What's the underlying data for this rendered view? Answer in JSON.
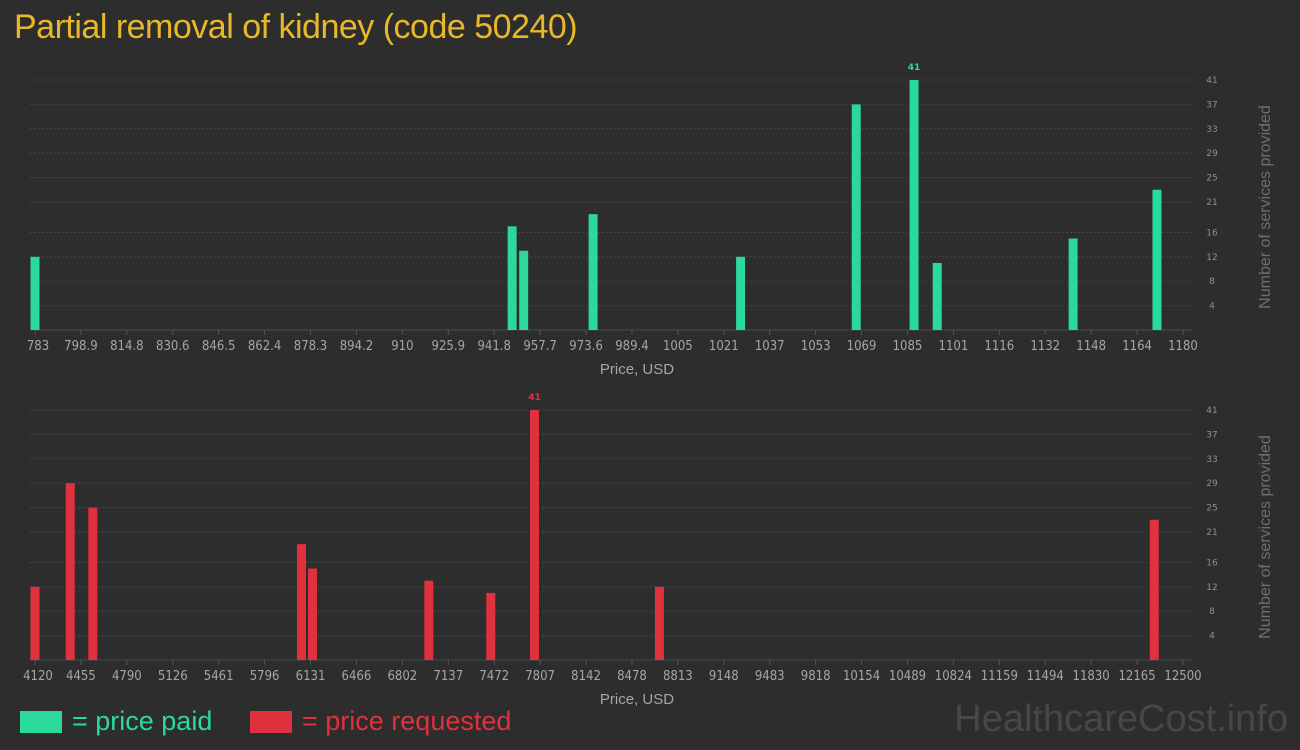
{
  "title": "Partial removal of kidney (code 50240)",
  "colors": {
    "paid": "#2bd99b",
    "requested": "#e0313f",
    "title": "#e8b82a"
  },
  "legend": {
    "paid": "= price paid",
    "requested": "= price requested"
  },
  "watermark": "HealthcareCost.info",
  "chart_data": [
    {
      "type": "bar",
      "series_key": "paid",
      "xlabel": "Price, USD",
      "ylabel": "Number of services provided",
      "xlim": [
        783,
        1180
      ],
      "ylim": [
        0,
        41
      ],
      "yticks": [
        4,
        8,
        12,
        16,
        21,
        25,
        29,
        33,
        37,
        41
      ],
      "xticks": [
        "783",
        "798.9",
        "814.8",
        "830.6",
        "846.5",
        "862.4",
        "878.3",
        "894.2",
        "910",
        "925.9",
        "941.8",
        "957.7",
        "973.6",
        "989.4",
        "1005",
        "1021",
        "1037",
        "1053",
        "1069",
        "1085",
        "1101",
        "1116",
        "1132",
        "1148",
        "1164",
        "1180"
      ],
      "bars": [
        {
          "x": 783,
          "value": 12
        },
        {
          "x": 948,
          "value": 17
        },
        {
          "x": 952,
          "value": 13
        },
        {
          "x": 976,
          "value": 19
        },
        {
          "x": 1027,
          "value": 12
        },
        {
          "x": 1067,
          "value": 37
        },
        {
          "x": 1087,
          "value": 41,
          "label": "41"
        },
        {
          "x": 1095,
          "value": 11
        },
        {
          "x": 1142,
          "value": 15
        },
        {
          "x": 1171,
          "value": 23
        }
      ]
    },
    {
      "type": "bar",
      "series_key": "requested",
      "xlabel": "Price, USD",
      "ylabel": "Number of services provided",
      "xlim": [
        4120,
        12500
      ],
      "ylim": [
        0,
        41
      ],
      "yticks": [
        4,
        8,
        12,
        16,
        21,
        25,
        29,
        33,
        37,
        41
      ],
      "xticks": [
        "4120",
        "4455",
        "4790",
        "5126",
        "5461",
        "5796",
        "6131",
        "6466",
        "6802",
        "7137",
        "7472",
        "7807",
        "8142",
        "8478",
        "8813",
        "9148",
        "9483",
        "9818",
        "10154",
        "10489",
        "10824",
        "11159",
        "11494",
        "11830",
        "12165",
        "12500"
      ],
      "bars": [
        {
          "x": 4120,
          "value": 12
        },
        {
          "x": 4377,
          "value": 29
        },
        {
          "x": 4542,
          "value": 25
        },
        {
          "x": 6065,
          "value": 19
        },
        {
          "x": 6146,
          "value": 15
        },
        {
          "x": 6995,
          "value": 13
        },
        {
          "x": 7447,
          "value": 11
        },
        {
          "x": 7766,
          "value": 41,
          "label": "41"
        },
        {
          "x": 8678,
          "value": 12
        },
        {
          "x": 12290,
          "value": 23
        }
      ]
    }
  ]
}
